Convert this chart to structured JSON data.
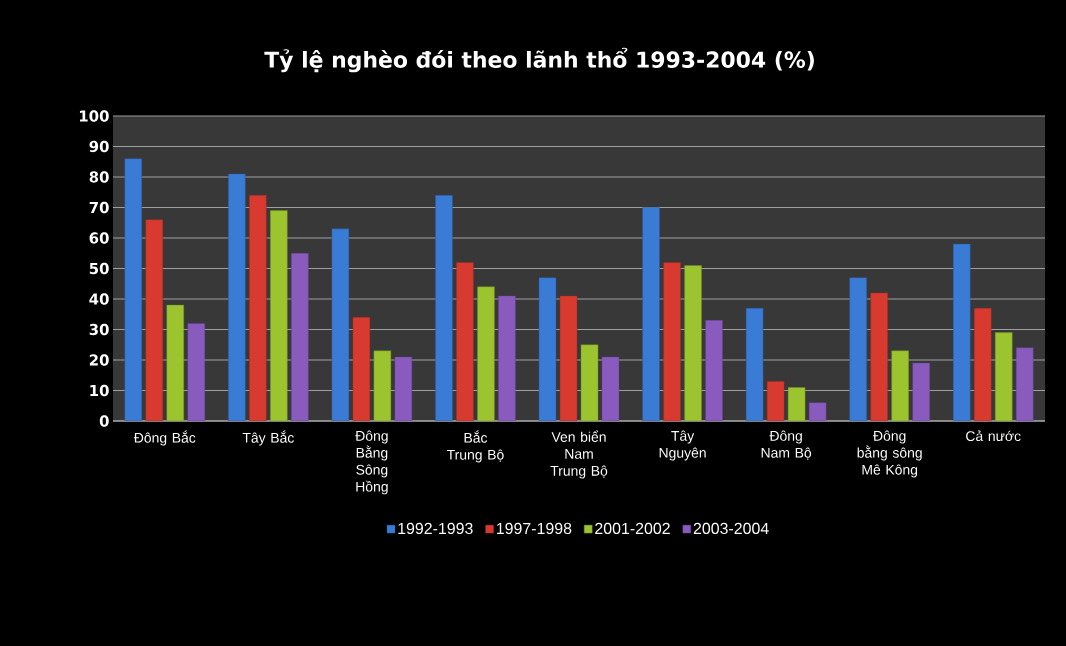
{
  "chart_data": {
    "type": "bar",
    "title": "Tỷ lệ nghèo đói theo lãnh thổ 1993-2004  (%)",
    "categories": [
      "Đông Bắc",
      "Tây Bắc",
      "Đông Bằng Sông Hồng",
      "Bắc Trung Bộ",
      "Ven biển Nam Trung Bộ",
      "Tây Nguyên",
      "Đông Nam Bộ",
      "Đông bằng sông Mê Kông",
      "Cả nước"
    ],
    "series": [
      {
        "name": "1992-1993",
        "color": "#3a7bd5",
        "values": [
          86,
          81,
          63,
          74,
          47,
          70,
          37,
          47,
          58
        ]
      },
      {
        "name": "1997-1998",
        "color": "#d83a30",
        "values": [
          66,
          74,
          34,
          52,
          41,
          52,
          13,
          42,
          37
        ]
      },
      {
        "name": "2001-2002",
        "color": "#9cc42f",
        "values": [
          38,
          69,
          23,
          44,
          25,
          51,
          11,
          23,
          29
        ]
      },
      {
        "name": "2003-2004",
        "color": "#8a5bbf",
        "values": [
          32,
          55,
          21,
          41,
          21,
          33,
          6,
          19,
          24
        ]
      }
    ],
    "ylim": [
      0,
      100
    ],
    "yticks": [
      0,
      10,
      20,
      30,
      40,
      50,
      60,
      70,
      80,
      90,
      100
    ],
    "grid": "y",
    "legend": "bottom"
  }
}
